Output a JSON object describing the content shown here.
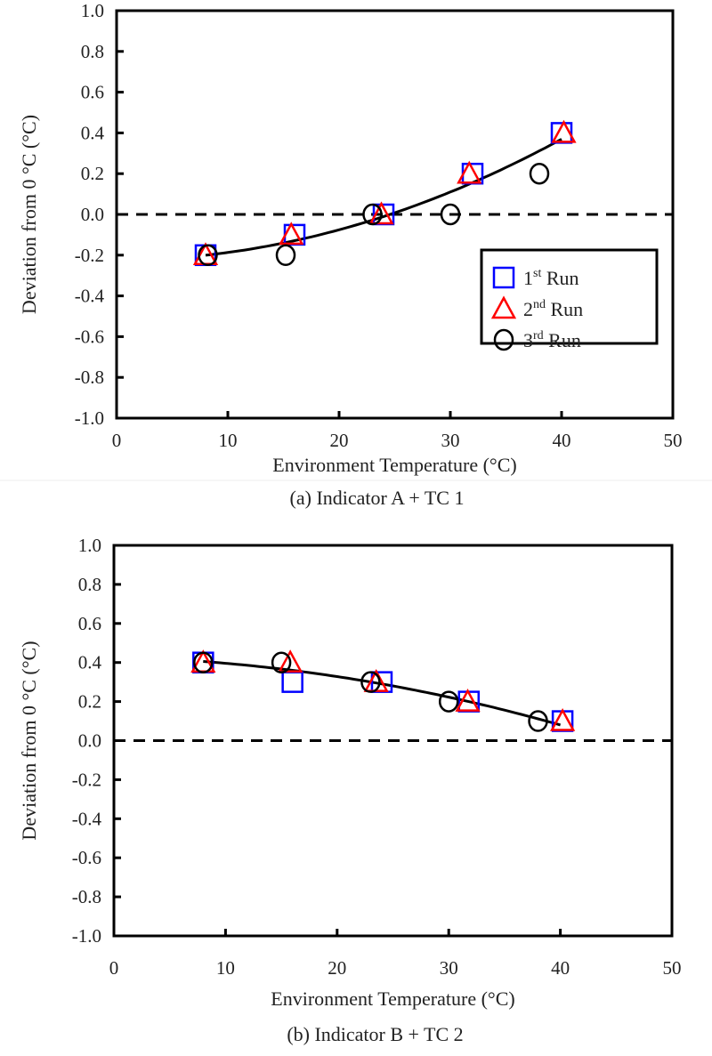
{
  "chart_data": [
    {
      "type": "scatter",
      "caption": "(a) Indicator A + TC 1",
      "xlabel": "Environment Temperature (°C)",
      "ylabel": "Deviation from 0 °C (°C)",
      "xlim": [
        0,
        50
      ],
      "ylim": [
        -1.0,
        1.0
      ],
      "xticks": [
        "0",
        "10",
        "20",
        "30",
        "40",
        "50"
      ],
      "yticks": [
        "1.0",
        "0.8",
        "0.6",
        "0.4",
        "0.2",
        "0.0",
        "-0.2",
        "-0.4",
        "-0.6",
        "-0.8",
        "-1.0"
      ],
      "reference_line": {
        "y": 0.0,
        "style": "dashed"
      },
      "grid": false,
      "legend": {
        "placement": "bottom-right",
        "entries": [
          {
            "base": "1",
            "sup": "st",
            "rest": " Run"
          },
          {
            "base": "2",
            "sup": "nd",
            "rest": " Run"
          },
          {
            "base": "3",
            "sup": "rd",
            "rest": " Run"
          }
        ]
      },
      "series": [
        {
          "name": "1st Run",
          "marker": "square",
          "color": "#0000ff",
          "x": [
            8,
            16,
            24,
            32,
            40
          ],
          "y": [
            -0.2,
            -0.1,
            0.0,
            0.2,
            0.4
          ]
        },
        {
          "name": "2nd Run",
          "marker": "triangle",
          "color": "#ff0000",
          "x": [
            8,
            15.7,
            23.8,
            31.7,
            40.2
          ],
          "y": [
            -0.2,
            -0.1,
            0.0,
            0.2,
            0.4
          ]
        },
        {
          "name": "3rd Run",
          "marker": "circle",
          "color": "#000000",
          "x": [
            8.2,
            15.2,
            23,
            30,
            38
          ],
          "y": [
            -0.2,
            -0.2,
            0.0,
            0.0,
            0.2
          ]
        }
      ],
      "trendline": {
        "type": "polynomial-2",
        "coefficients": [
          -0.224,
          0.0,
          0.000371
        ],
        "x_range": [
          8,
          40
        ],
        "color": "#000000"
      }
    },
    {
      "type": "scatter",
      "caption": "(b) Indicator B + TC 2",
      "xlabel": "Environment Temperature (°C)",
      "ylabel": "Deviation from 0 °C (°C)",
      "xlim": [
        0,
        50
      ],
      "ylim": [
        -1.0,
        1.0
      ],
      "xticks": [
        "0",
        "10",
        "20",
        "30",
        "40",
        "50"
      ],
      "yticks": [
        "1.0",
        "0.8",
        "0.6",
        "0.4",
        "0.2",
        "0.0",
        "-0.2",
        "-0.4",
        "-0.6",
        "-0.8",
        "-1.0"
      ],
      "reference_line": {
        "y": 0.0,
        "style": "dashed"
      },
      "grid": false,
      "series": [
        {
          "name": "1st Run",
          "marker": "square",
          "color": "#0000ff",
          "x": [
            8,
            16,
            24,
            31.8,
            40.2
          ],
          "y": [
            0.4,
            0.3,
            0.3,
            0.2,
            0.1
          ]
        },
        {
          "name": "2nd Run",
          "marker": "triangle",
          "color": "#ff0000",
          "x": [
            8,
            15.8,
            23.5,
            31.7,
            40.2
          ],
          "y": [
            0.4,
            0.4,
            0.3,
            0.2,
            0.1
          ]
        },
        {
          "name": "3rd Run",
          "marker": "circle",
          "color": "#000000",
          "x": [
            8,
            15,
            23,
            30,
            38
          ],
          "y": [
            0.4,
            0.4,
            0.3,
            0.2,
            0.1
          ]
        }
      ],
      "trendline": {
        "type": "polynomial-2",
        "coefficients": [
          0.427,
          -0.00123,
          -0.000186
        ],
        "x_range": [
          8,
          40
        ],
        "color": "#000000"
      }
    }
  ]
}
